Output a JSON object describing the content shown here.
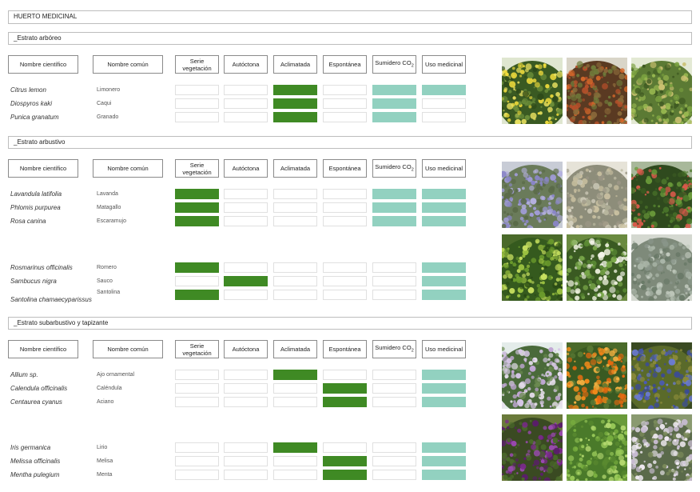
{
  "page_title": "HUERTO MEDICINAL",
  "headers": {
    "scientific": "Nombre científico",
    "common": "Nombre común",
    "serie": "Serie vegetación",
    "autoctona": "Autóctona",
    "aclimatada": "Aclimatada",
    "espontanea": "Espontánea",
    "sumidero": "Sumidero CO",
    "sumidero_sub": "2",
    "uso": "Uso medicinal"
  },
  "colors": {
    "green": "#3f8a24",
    "teal": "#92d1c0"
  },
  "legend_values": {
    "g": "green",
    "t": "teal",
    "": "empty"
  },
  "sections": [
    {
      "title": "_Estrato arbóreo",
      "groups": [
        {
          "plants": [
            {
              "scientific": "Citrus lemon",
              "common": "Limonero",
              "marks": [
                "",
                "",
                "g",
                "",
                "t",
                "t"
              ]
            },
            {
              "scientific": "Diospyros kaki",
              "common": "Caqui",
              "marks": [
                "",
                "",
                "g",
                "",
                "t",
                ""
              ]
            },
            {
              "scientific": "Punica granatum",
              "common": "Granado",
              "marks": [
                "",
                "",
                "g",
                "",
                "t",
                ""
              ]
            }
          ],
          "photos": [
            "lemon-tree-photo",
            "persimmon-tree-photo",
            "pomegranate-tree-photo"
          ]
        }
      ]
    },
    {
      "title": "_Estrato arbustivo",
      "groups": [
        {
          "plants": [
            {
              "scientific": "Lavandula latifolia",
              "common": "Lavanda",
              "marks": [
                "g",
                "",
                "",
                "",
                "t",
                "t"
              ]
            },
            {
              "scientific": "Phlomis purpurea",
              "common": "Matagallo",
              "marks": [
                "g",
                "",
                "",
                "",
                "t",
                "t"
              ]
            },
            {
              "scientific": "Rosa canina",
              "common": "Escaramujo",
              "marks": [
                "g",
                "",
                "",
                "",
                "t",
                "t"
              ]
            }
          ],
          "photos": [
            "lavender-photo",
            "phlomis-shrub-photo",
            "rosehip-shrub-photo"
          ]
        },
        {
          "plants": [
            {
              "scientific": "Rosmarinus officinalis",
              "common": "Romero",
              "marks": [
                "g",
                "",
                "",
                "",
                "",
                "t"
              ]
            },
            {
              "scientific": "Sambucus nigra",
              "common": "Sauco",
              "marks": [
                "",
                "g",
                "",
                "",
                "",
                "t"
              ]
            },
            {
              "scientific": "Santolina chamaecyparissus",
              "common": "Santolina",
              "marks": [
                "g",
                "",
                "",
                "",
                "",
                "t"
              ]
            }
          ],
          "photos": [
            "rosemary-photo",
            "elder-shrub-photo",
            "santolina-photo"
          ]
        }
      ]
    },
    {
      "title": "_Estrato subarbustivo y tapizante",
      "groups": [
        {
          "plants": [
            {
              "scientific": "Allium sp.",
              "common": "Ajo ornamental",
              "marks": [
                "",
                "",
                "g",
                "",
                "",
                "t"
              ]
            },
            {
              "scientific": "Calendula officinalis",
              "common": "Caléndula",
              "marks": [
                "",
                "",
                "",
                "g",
                "",
                "t"
              ]
            },
            {
              "scientific": "Centaurea cyanus",
              "common": "Aciano",
              "marks": [
                "",
                "",
                "",
                "g",
                "",
                "t"
              ]
            }
          ],
          "photos": [
            "allium-flowers-photo",
            "calendula-flowers-photo",
            "cornflower-field-photo"
          ]
        },
        {
          "plants": [
            {
              "scientific": "Iris germanica",
              "common": "Lirio",
              "marks": [
                "",
                "",
                "g",
                "",
                "",
                "t"
              ]
            },
            {
              "scientific": "Melissa officinalis",
              "common": "Melisa",
              "marks": [
                "",
                "",
                "",
                "g",
                "",
                "t"
              ]
            },
            {
              "scientific": "Mentha pulegium",
              "common": "Menta",
              "marks": [
                "",
                "",
                "",
                "g",
                "",
                "t"
              ]
            }
          ],
          "photos": [
            "iris-flowers-photo",
            "melissa-leaves-photo",
            "mint-flowers-photo"
          ]
        }
      ]
    }
  ]
}
